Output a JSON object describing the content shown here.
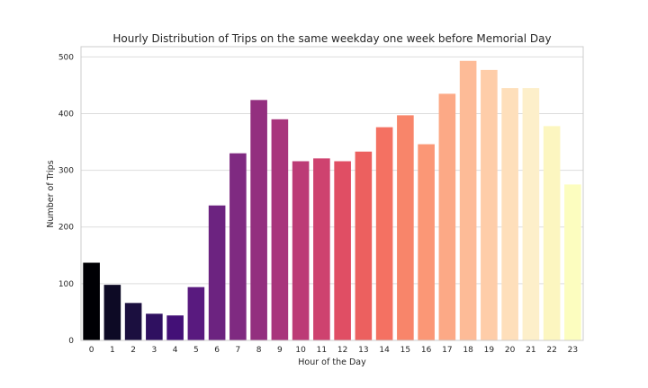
{
  "chart_data": {
    "type": "bar",
    "title": "Hourly Distribution of Trips on the same weekday one week before Memorial Day",
    "xlabel": "Hour of the Day",
    "ylabel": "Number of Trips",
    "categories": [
      "0",
      "1",
      "2",
      "3",
      "4",
      "5",
      "6",
      "7",
      "8",
      "9",
      "10",
      "11",
      "12",
      "13",
      "14",
      "15",
      "16",
      "17",
      "18",
      "19",
      "20",
      "21",
      "22",
      "23"
    ],
    "values": [
      137,
      98,
      66,
      47,
      44,
      94,
      238,
      330,
      424,
      390,
      316,
      321,
      316,
      333,
      376,
      397,
      346,
      435,
      493,
      477,
      445,
      445,
      378,
      275
    ],
    "colors": [
      "#000004",
      "#0d0a25",
      "#1b0f3f",
      "#2f1060",
      "#431077",
      "#591a7f",
      "#6c2380",
      "#7f2a81",
      "#932f7f",
      "#a8357c",
      "#bc3b76",
      "#ce426f",
      "#e04e64",
      "#ec605f",
      "#f47162",
      "#f8856a",
      "#fb9776",
      "#fca986",
      "#fdbb97",
      "#fecda9",
      "#fedfbb",
      "#fdefca",
      "#fcf6c0",
      "#fcfdbf"
    ],
    "yticks": [
      0,
      100,
      200,
      300,
      400,
      500
    ],
    "ylim": [
      0,
      518
    ],
    "grid": true,
    "style": "whitegrid"
  }
}
